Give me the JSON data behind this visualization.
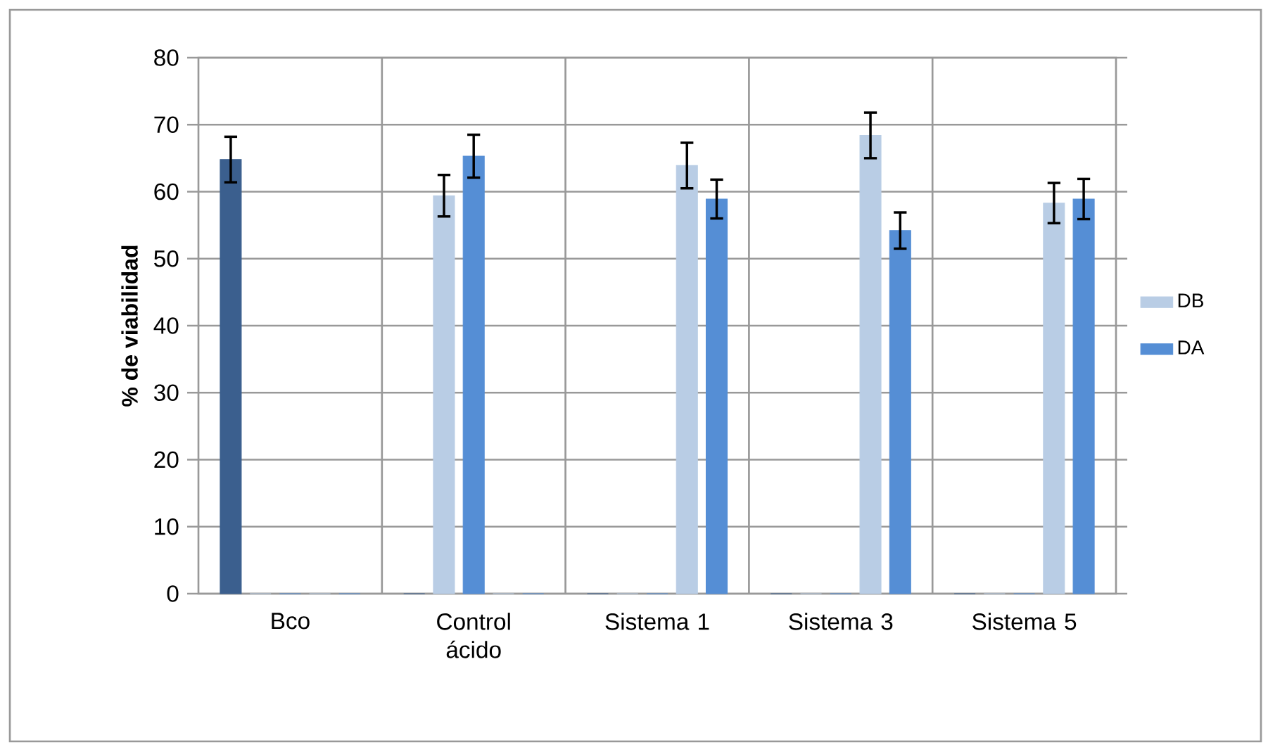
{
  "chart_data": {
    "type": "bar",
    "ylabel": "% de viabilidad",
    "categories": [
      "Bco",
      "Control ácido",
      "Sistema 1",
      "Sistema 3",
      "Sistema 5"
    ],
    "series": [
      {
        "color": "#3b5f8e",
        "values": [
          64.8,
          0,
          0,
          0,
          0
        ],
        "errors": [
          3.4,
          null,
          null,
          null,
          null
        ]
      },
      {
        "color": "#b9cde5",
        "values": [
          0,
          59.4,
          0,
          0,
          0
        ],
        "errors": [
          null,
          3.1,
          null,
          null,
          null
        ]
      },
      {
        "color": "#558ed5",
        "values": [
          0,
          65.3,
          0,
          0,
          0
        ],
        "errors": [
          null,
          3.2,
          null,
          null,
          null
        ]
      },
      {
        "name": "DB",
        "color": "#b9cde5",
        "values": [
          0,
          0,
          63.9,
          68.4,
          58.3
        ],
        "errors": [
          null,
          null,
          3.4,
          3.4,
          3.0
        ]
      },
      {
        "name": "DA",
        "color": "#558ed5",
        "values": [
          0,
          0,
          58.9,
          54.2,
          58.9
        ],
        "errors": [
          null,
          null,
          2.9,
          2.7,
          3.0
        ]
      }
    ],
    "ylim": [
      0,
      80
    ],
    "yticks": [
      0,
      10,
      20,
      30,
      40,
      50,
      60,
      70,
      80
    ],
    "grid": true,
    "legend": "right"
  }
}
